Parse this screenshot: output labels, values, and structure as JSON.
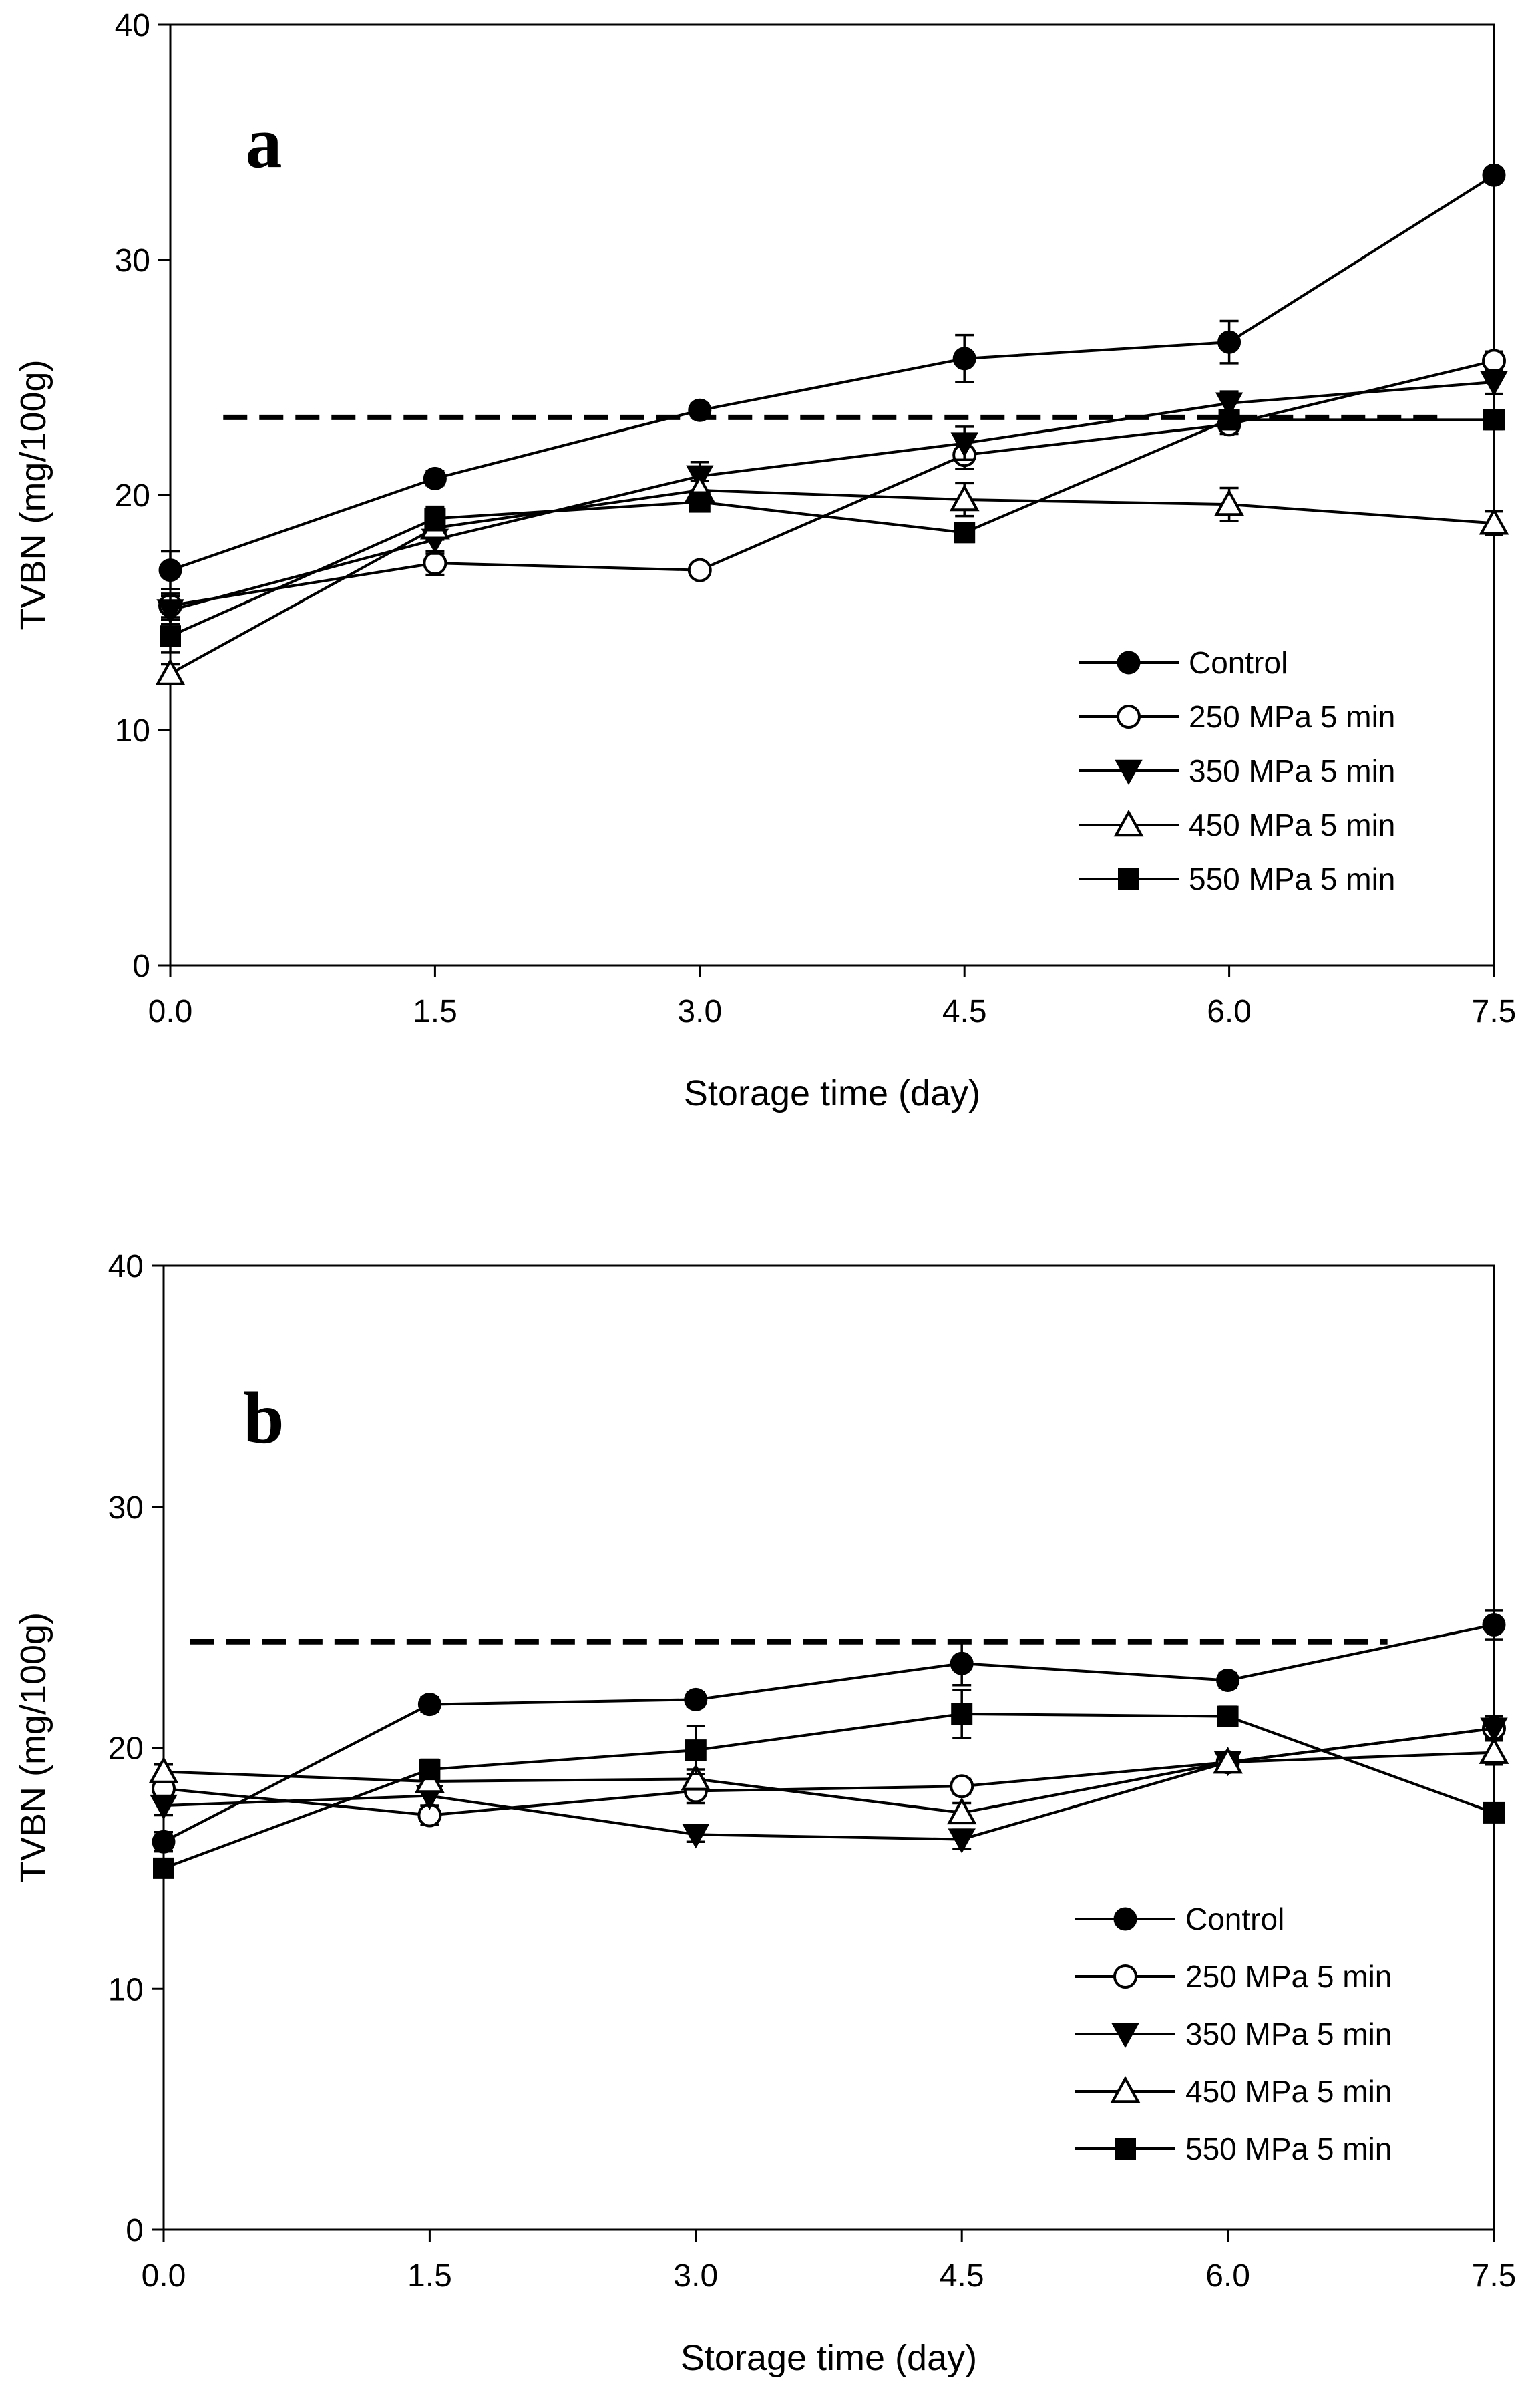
{
  "chart_data": [
    {
      "type": "line",
      "panel_label": "a",
      "xlabel": "Storage time (day)",
      "ylabel": "TVBN (mg/100g)",
      "xlim": [
        0,
        7.5
      ],
      "ylim": [
        0,
        40
      ],
      "xticks": [
        "0.0",
        "1.5",
        "3.0",
        "4.5",
        "6.0",
        "7.5"
      ],
      "yticks": [
        "0",
        "10",
        "20",
        "30",
        "40"
      ],
      "x": [
        0,
        1.5,
        3.0,
        4.5,
        6.0,
        7.5
      ],
      "reference_line": {
        "y": 23.3,
        "x_start": 0.3,
        "x_end": 7.2
      },
      "legend_position": "bottom-right",
      "series": [
        {
          "name": "Control",
          "marker": "circle-filled",
          "values": [
            16.8,
            20.7,
            23.6,
            25.8,
            26.5,
            33.6
          ],
          "errors": [
            0.8,
            0.3,
            0.3,
            1.0,
            0.9,
            0.3
          ]
        },
        {
          "name": "250 MPa 5 min",
          "marker": "circle-open",
          "values": [
            15.3,
            17.1,
            16.8,
            21.7,
            23.0,
            25.7
          ],
          "errors": [
            0.5,
            0.5,
            0.3,
            0.6,
            0.4,
            0.4
          ]
        },
        {
          "name": "350 MPa 5 min",
          "marker": "triangle-down-filled",
          "values": [
            15.1,
            18.1,
            20.8,
            22.2,
            23.9,
            24.8
          ],
          "errors": [
            0.6,
            0.6,
            0.6,
            0.7,
            0.5,
            0.5
          ]
        },
        {
          "name": "450 MPa 5 min",
          "marker": "triangle-up-open",
          "values": [
            12.4,
            18.6,
            20.2,
            19.8,
            19.6,
            18.8
          ],
          "errors": [
            0.4,
            0.5,
            0.4,
            0.7,
            0.7,
            0.5
          ]
        },
        {
          "name": "550 MPa 5 min",
          "marker": "square-filled",
          "values": [
            14.0,
            19.0,
            19.7,
            18.4,
            23.2,
            23.2
          ],
          "errors": [
            0.7,
            0.5,
            0.4,
            0.4,
            0.4,
            0.4
          ]
        }
      ]
    },
    {
      "type": "line",
      "panel_label": "b",
      "xlabel": "Storage time (day)",
      "ylabel": "TVBN (mg/100g)",
      "xlim": [
        0,
        7.5
      ],
      "ylim": [
        0,
        40
      ],
      "xticks": [
        "0.0",
        "1.5",
        "3.0",
        "4.5",
        "6.0",
        "7.5"
      ],
      "yticks": [
        "0",
        "10",
        "20",
        "30",
        "40"
      ],
      "x": [
        0,
        1.5,
        3.0,
        4.5,
        6.0,
        7.5
      ],
      "reference_line": {
        "y": 24.4,
        "x_start": 0.15,
        "x_end": 6.9
      },
      "legend_position": "bottom-right",
      "series": [
        {
          "name": "Control",
          "marker": "circle-filled",
          "values": [
            16.1,
            21.8,
            22.0,
            23.5,
            22.8,
            25.1
          ],
          "errors": [
            0.4,
            0.3,
            0.3,
            0.9,
            0.3,
            0.6
          ]
        },
        {
          "name": "250 MPa 5 min",
          "marker": "circle-open",
          "values": [
            18.3,
            17.2,
            18.2,
            18.4,
            19.4,
            20.8
          ],
          "errors": [
            0.4,
            0.4,
            0.5,
            0.3,
            0.3,
            0.4
          ]
        },
        {
          "name": "350 MPa 5 min",
          "marker": "triangle-down-filled",
          "values": [
            17.6,
            18.0,
            16.4,
            16.2,
            19.4,
            20.8
          ],
          "errors": [
            0.4,
            0.4,
            0.3,
            0.4,
            0.3,
            0.5
          ]
        },
        {
          "name": "450 MPa 5 min",
          "marker": "triangle-up-open",
          "values": [
            19.0,
            18.6,
            18.7,
            17.3,
            19.4,
            19.8
          ],
          "errors": [
            0.3,
            0.3,
            0.4,
            0.4,
            0.3,
            0.5
          ]
        },
        {
          "name": "550 MPa 5 min",
          "marker": "square-filled",
          "values": [
            15.0,
            19.1,
            19.9,
            21.4,
            21.3,
            17.3
          ],
          "errors": [
            0.3,
            0.4,
            1.0,
            1.0,
            0.4,
            0.3
          ]
        }
      ]
    }
  ]
}
